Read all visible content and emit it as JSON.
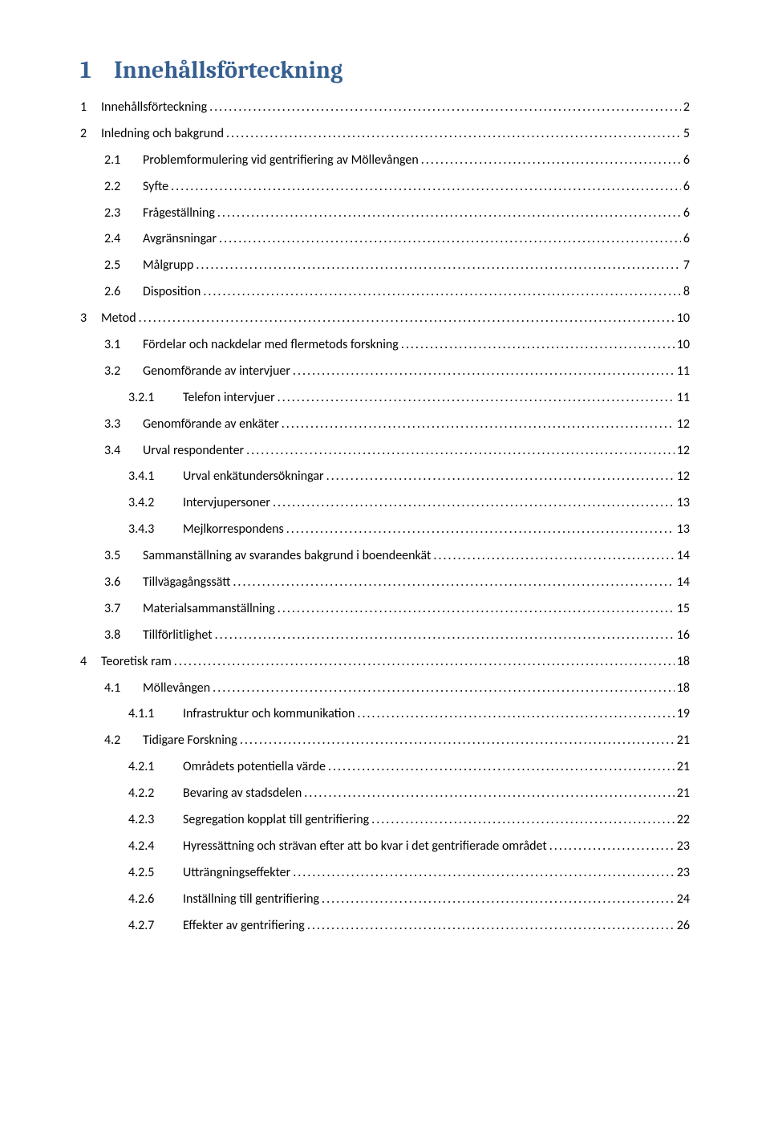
{
  "heading": {
    "number": "1",
    "title": "Innehållsförteckning"
  },
  "colors": {
    "heading": "#365f91",
    "text": "#000000",
    "background": "#ffffff"
  },
  "typography": {
    "heading_fontsize": 30,
    "body_fontsize": 16,
    "heading_font": "Cambria",
    "body_font": "Calibri"
  },
  "toc": [
    {
      "level": 1,
      "num": "1",
      "title": "Innehållsförteckning",
      "page": "2"
    },
    {
      "level": 1,
      "num": "2",
      "title": "Inledning och bakgrund",
      "page": "5"
    },
    {
      "level": 2,
      "num": "2.1",
      "title": "Problemformulering vid gentrifiering av Möllevången",
      "page": "6"
    },
    {
      "level": 2,
      "num": "2.2",
      "title": "Syfte",
      "page": "6"
    },
    {
      "level": 2,
      "num": "2.3",
      "title": "Frågeställning",
      "page": "6"
    },
    {
      "level": 2,
      "num": "2.4",
      "title": "Avgränsningar",
      "page": "6"
    },
    {
      "level": 2,
      "num": "2.5",
      "title": "Målgrupp",
      "page": "7"
    },
    {
      "level": 2,
      "num": "2.6",
      "title": "Disposition",
      "page": "8"
    },
    {
      "level": 1,
      "num": "3",
      "title": "Metod",
      "page": "10"
    },
    {
      "level": 2,
      "num": "3.1",
      "title": "Fördelar och nackdelar med flermetods forskning",
      "page": "10"
    },
    {
      "level": 2,
      "num": "3.2",
      "title": "Genomförande av intervjuer",
      "page": "11"
    },
    {
      "level": 3,
      "num": "3.2.1",
      "title": "Telefon intervjuer",
      "page": "11"
    },
    {
      "level": 2,
      "num": "3.3",
      "title": "Genomförande av enkäter",
      "page": "12"
    },
    {
      "level": 2,
      "num": "3.4",
      "title": "Urval respondenter",
      "page": "12"
    },
    {
      "level": 3,
      "num": "3.4.1",
      "title": "Urval enkätundersökningar",
      "page": "12"
    },
    {
      "level": 3,
      "num": "3.4.2",
      "title": "Intervjupersoner",
      "page": "13"
    },
    {
      "level": 3,
      "num": "3.4.3",
      "title": "Mejlkorrespondens",
      "page": "13"
    },
    {
      "level": 2,
      "num": "3.5",
      "title": "Sammanställning av svarandes bakgrund i boendeenkät",
      "page": "14"
    },
    {
      "level": 2,
      "num": "3.6",
      "title": "Tillvägagångssätt",
      "page": "14"
    },
    {
      "level": 2,
      "num": "3.7",
      "title": "Materialsammanställning",
      "page": "15"
    },
    {
      "level": 2,
      "num": "3.8",
      "title": "Tillförlitlighet",
      "page": "16"
    },
    {
      "level": 1,
      "num": "4",
      "title": "Teoretisk ram",
      "page": "18"
    },
    {
      "level": 2,
      "num": "4.1",
      "title": "Möllevången",
      "page": "18"
    },
    {
      "level": 3,
      "num": "4.1.1",
      "title": "Infrastruktur och kommunikation",
      "page": "19"
    },
    {
      "level": 2,
      "num": "4.2",
      "title": "Tidigare Forskning",
      "page": "21"
    },
    {
      "level": 3,
      "num": "4.2.1",
      "title": "Områdets potentiella värde",
      "page": "21"
    },
    {
      "level": 3,
      "num": "4.2.2",
      "title": "Bevaring av stadsdelen",
      "page": "21"
    },
    {
      "level": 3,
      "num": "4.2.3",
      "title": "Segregation kopplat till gentrifiering",
      "page": "22"
    },
    {
      "level": 3,
      "num": "4.2.4",
      "title": "Hyressättning och strävan efter att bo kvar i det gentrifierade området",
      "page": "23"
    },
    {
      "level": 3,
      "num": "4.2.5",
      "title": "Utträngningseffekter",
      "page": "23"
    },
    {
      "level": 3,
      "num": "4.2.6",
      "title": "Inställning till gentrifiering",
      "page": "24"
    },
    {
      "level": 3,
      "num": "4.2.7",
      "title": "Effekter av gentrifiering",
      "page": "26"
    }
  ]
}
